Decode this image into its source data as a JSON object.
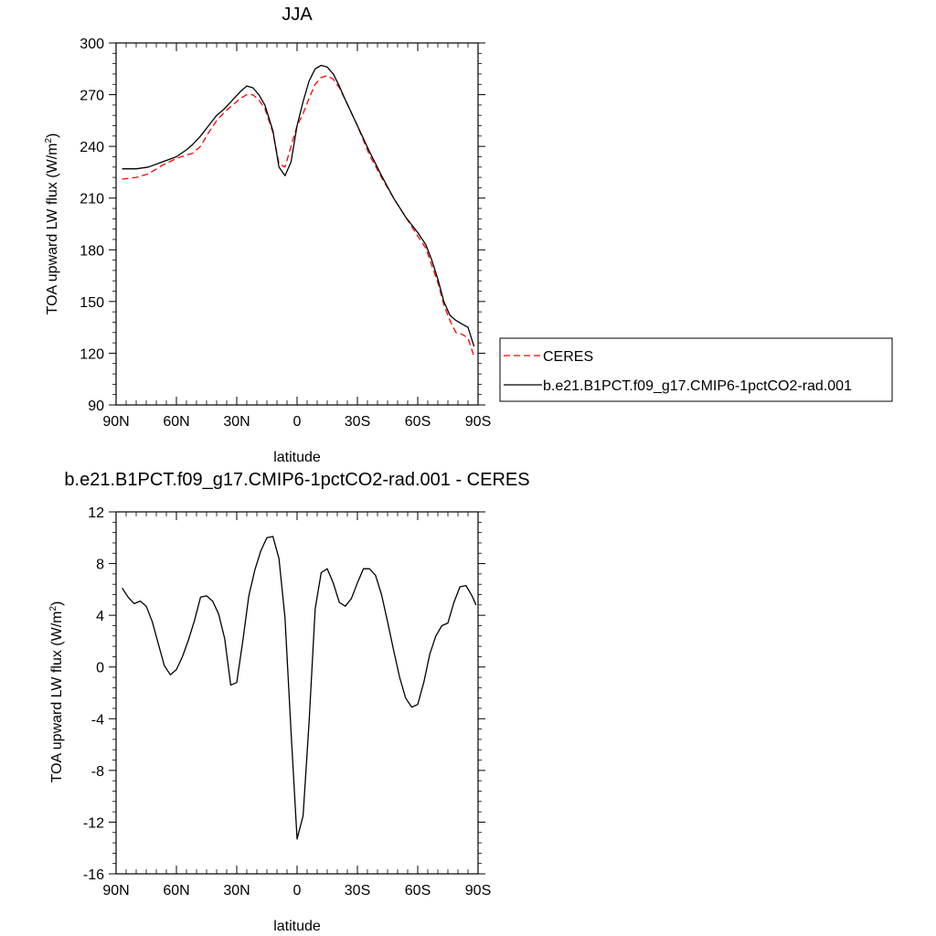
{
  "chart_data": [
    {
      "type": "line",
      "title": "JJA",
      "xlabel": "latitude",
      "ylabel": "TOA upward LW flux (W/m",
      "ylabel_sup": "2",
      "ylabel_close": ")",
      "xlim": [
        90,
        -90
      ],
      "ylim": [
        90,
        300
      ],
      "x_ticks": [
        90,
        60,
        30,
        0,
        -30,
        -60,
        -90
      ],
      "x_tick_labels": [
        "90N",
        "60N",
        "30N",
        "0",
        "30S",
        "60S",
        "90S"
      ],
      "y_ticks": [
        90,
        120,
        150,
        180,
        210,
        240,
        270,
        300
      ],
      "y_tick_labels": [
        "90",
        "120",
        "150",
        "180",
        "210",
        "240",
        "270",
        "300"
      ],
      "legend_position": "right",
      "series": [
        {
          "name": "CERES",
          "color": "#ff0000",
          "dash": "dashed",
          "x": [
            87,
            80,
            74,
            67,
            60,
            55,
            52,
            48,
            44,
            40,
            36,
            32,
            28,
            25,
            22,
            19,
            16,
            12,
            9,
            6,
            3,
            0,
            -3,
            -6,
            -9,
            -12,
            -15,
            -18,
            -21,
            -24,
            -30,
            -36,
            -42,
            -48,
            -54,
            -60,
            -64,
            -67,
            -70,
            -73,
            -76,
            -79,
            -82,
            -85,
            -88
          ],
          "y": [
            221,
            222,
            224,
            229,
            233,
            235,
            236,
            240,
            248,
            255,
            260,
            264,
            268,
            270,
            270,
            267,
            262,
            248,
            230,
            228,
            240,
            252,
            259,
            268,
            276,
            280,
            281,
            279,
            274,
            267,
            252,
            235,
            222,
            210,
            199,
            188,
            181,
            171,
            161,
            148,
            139,
            132,
            131,
            129,
            118
          ]
        },
        {
          "name": "b.e21.B1PCT.f09_g17.CMIP6-1pctCO2-rad.001",
          "color": "#000000",
          "dash": "solid",
          "x": [
            87,
            80,
            74,
            67,
            60,
            55,
            52,
            48,
            44,
            40,
            36,
            32,
            28,
            25,
            22,
            19,
            16,
            12,
            9,
            6,
            3,
            0,
            -3,
            -6,
            -9,
            -12,
            -15,
            -18,
            -21,
            -24,
            -30,
            -36,
            -42,
            -48,
            -54,
            -60,
            -64,
            -67,
            -70,
            -73,
            -76,
            -79,
            -82,
            -85,
            -88
          ],
          "y": [
            227,
            227,
            228,
            231,
            234,
            238,
            241,
            246,
            252,
            258,
            262,
            267,
            272,
            275,
            274,
            270,
            264,
            249,
            228,
            223,
            231,
            252,
            266,
            278,
            285,
            287,
            286,
            282,
            275,
            267,
            252,
            237,
            223,
            210,
            199,
            190,
            183,
            174,
            163,
            150,
            142,
            139,
            137,
            135,
            124
          ]
        }
      ]
    },
    {
      "type": "line",
      "title": "b.e21.B1PCT.f09_g17.CMIP6-1pctCO2-rad.001 - CERES",
      "xlabel": "latitude",
      "ylabel": "TOA upward LW flux (W/m",
      "ylabel_sup": "2",
      "ylabel_close": ")",
      "xlim": [
        90,
        -90
      ],
      "ylim": [
        -16,
        12
      ],
      "x_ticks": [
        90,
        60,
        30,
        0,
        -30,
        -60,
        -90
      ],
      "x_tick_labels": [
        "90N",
        "60N",
        "30N",
        "0",
        "30S",
        "60S",
        "90S"
      ],
      "y_ticks": [
        -16,
        -12,
        -8,
        -4,
        0,
        4,
        8,
        12
      ],
      "y_tick_labels": [
        "-16",
        "-12",
        "-8",
        "-4",
        "0",
        "4",
        "8",
        "12"
      ],
      "series": [
        {
          "name": "b.e21.B1PCT.f09_g17.CMIP6-1pctCO2-rad.001 - CERES",
          "color": "#000000",
          "dash": "solid",
          "x": [
            87,
            84,
            81,
            78,
            75,
            72,
            69,
            66,
            63,
            60,
            57,
            54,
            51,
            48,
            45,
            42,
            39,
            36,
            33,
            30,
            27,
            24,
            21,
            18,
            15,
            12,
            9,
            6,
            3,
            0,
            -3,
            -6,
            -9,
            -12,
            -15,
            -18,
            -21,
            -24,
            -27,
            -30,
            -33,
            -36,
            -39,
            -42,
            -45,
            -48,
            -51,
            -54,
            -57,
            -60,
            -63,
            -66,
            -69,
            -72,
            -75,
            -78,
            -81,
            -84,
            -87,
            -89
          ],
          "y": [
            6.1,
            5.4,
            4.9,
            5.1,
            4.7,
            3.5,
            1.8,
            0.1,
            -0.6,
            -0.2,
            0.8,
            2.1,
            3.6,
            5.4,
            5.5,
            5.1,
            4.1,
            2.2,
            -1.4,
            -1.2,
            2.0,
            5.5,
            7.5,
            9.0,
            10.0,
            10.1,
            8.4,
            3.8,
            -5.0,
            -13.3,
            -11.5,
            -4.2,
            4.5,
            7.3,
            7.6,
            6.5,
            5.0,
            4.7,
            5.3,
            6.5,
            7.6,
            7.6,
            7.1,
            5.6,
            3.5,
            1.3,
            -0.8,
            -2.4,
            -3.1,
            -2.9,
            -1.2,
            1.0,
            2.4,
            3.2,
            3.4,
            5.0,
            6.2,
            6.3,
            5.5,
            4.8
          ]
        }
      ]
    }
  ]
}
